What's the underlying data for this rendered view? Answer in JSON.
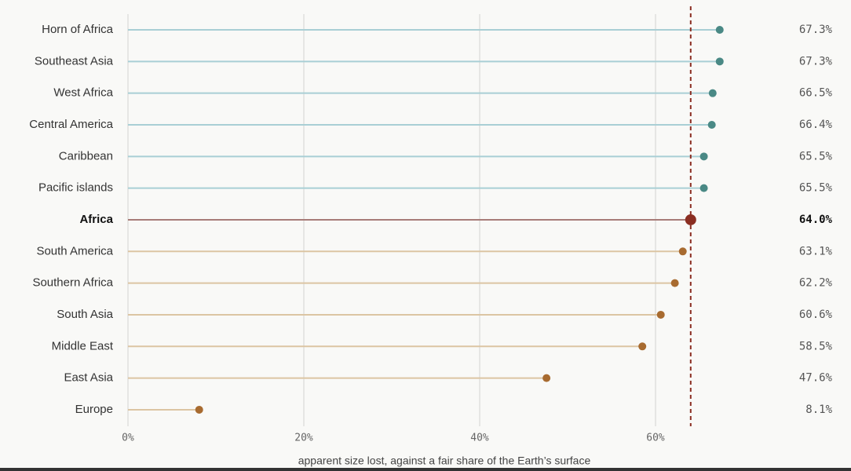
{
  "chart_data": {
    "type": "lollipop",
    "x_label": "apparent size lost, against a fair share of the Earth’s surface",
    "categories": [
      "Horn of Africa",
      "Southeast Asia",
      "West Africa",
      "Central America",
      "Caribbean",
      "Pacific islands",
      "Africa",
      "South America",
      "Southern Africa",
      "South Asia",
      "Middle East",
      "East Asia",
      "Europe"
    ],
    "values": [
      67.3,
      67.3,
      66.5,
      66.4,
      65.5,
      65.5,
      64.0,
      63.1,
      62.2,
      60.6,
      58.5,
      47.6,
      8.1
    ],
    "value_labels": [
      "67.3%",
      "67.3%",
      "66.5%",
      "66.4%",
      "65.5%",
      "65.5%",
      "64.0%",
      "63.1%",
      "62.2%",
      "60.6%",
      "58.5%",
      "47.6%",
      "8.1%"
    ],
    "xlim": [
      0,
      70
    ],
    "xticks": [
      {
        "value": 0,
        "label": "0%"
      },
      {
        "value": 20,
        "label": "20%"
      },
      {
        "value": 40,
        "label": "40%"
      },
      {
        "value": 60,
        "label": "60%"
      }
    ],
    "grid": true,
    "reference_line": {
      "value": 64.0,
      "color": "#8b2e22"
    },
    "above_color": "#4a8985",
    "above_line_color": "#a9cfd5",
    "below_color": "#a86b30",
    "below_line_color": "#dcc5a3",
    "reference_line_color": "#a87c78"
  }
}
